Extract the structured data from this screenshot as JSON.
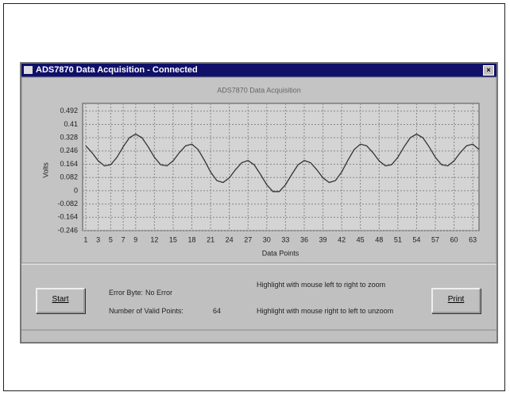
{
  "window": {
    "title": "ADS7870 Data Acquisition - Connected",
    "start_button": "Start",
    "print_button": "Print",
    "error_byte_label": "Error Byte:",
    "error_byte_value": "No Error",
    "valid_points_label": "Number of Valid Points:",
    "valid_points_value": 64,
    "zoom_hint": "Highlight with mouse left to right to zoom",
    "unzoom_hint": "Highlight with mouse right to left to unzoom"
  },
  "chart_data": {
    "type": "line",
    "title": "ADS7870 Data Acquisition",
    "x_label": "Data Points",
    "y_label": "Volts",
    "x": [
      1,
      2,
      3,
      4,
      5,
      6,
      7,
      8,
      9,
      10,
      11,
      12,
      13,
      14,
      15,
      16,
      17,
      18,
      19,
      20,
      21,
      22,
      23,
      24,
      25,
      26,
      27,
      28,
      29,
      30,
      31,
      32,
      33,
      34,
      35,
      36,
      37,
      38,
      39,
      40,
      41,
      42,
      43,
      44,
      45,
      46,
      47,
      48,
      49,
      50,
      51,
      52,
      53,
      54,
      55,
      56,
      57,
      58,
      59,
      60,
      61,
      62,
      63,
      64
    ],
    "series": [
      {
        "name": "Volts",
        "color": "#333333",
        "values": [
          0.278,
          0.236,
          0.185,
          0.154,
          0.161,
          0.207,
          0.272,
          0.328,
          0.35,
          0.328,
          0.272,
          0.207,
          0.161,
          0.154,
          0.185,
          0.236,
          0.278,
          0.288,
          0.255,
          0.189,
          0.116,
          0.063,
          0.051,
          0.08,
          0.131,
          0.174,
          0.187,
          0.16,
          0.101,
          0.037,
          -0.005,
          -0.005,
          0.037,
          0.101,
          0.16,
          0.187,
          0.174,
          0.131,
          0.08,
          0.051,
          0.063,
          0.116,
          0.189,
          0.255,
          0.288,
          0.278,
          0.236,
          0.185,
          0.154,
          0.161,
          0.207,
          0.272,
          0.328,
          0.35,
          0.328,
          0.272,
          0.207,
          0.161,
          0.154,
          0.185,
          0.236,
          0.278,
          0.288,
          0.255
        ]
      }
    ],
    "xlim": [
      0.5,
      64
    ],
    "xticks": [
      1,
      3,
      5,
      7,
      9,
      12,
      15,
      18,
      21,
      24,
      27,
      30,
      33,
      36,
      39,
      42,
      45,
      48,
      51,
      54,
      57,
      60,
      63
    ],
    "ylim": [
      -0.246,
      0.54
    ],
    "yticks": [
      0.492,
      0.41,
      0.328,
      0.246,
      0.164,
      0.082,
      0,
      -0.082,
      -0.164,
      -0.246
    ],
    "grid": true,
    "plot_color": "#d4d4d4"
  }
}
